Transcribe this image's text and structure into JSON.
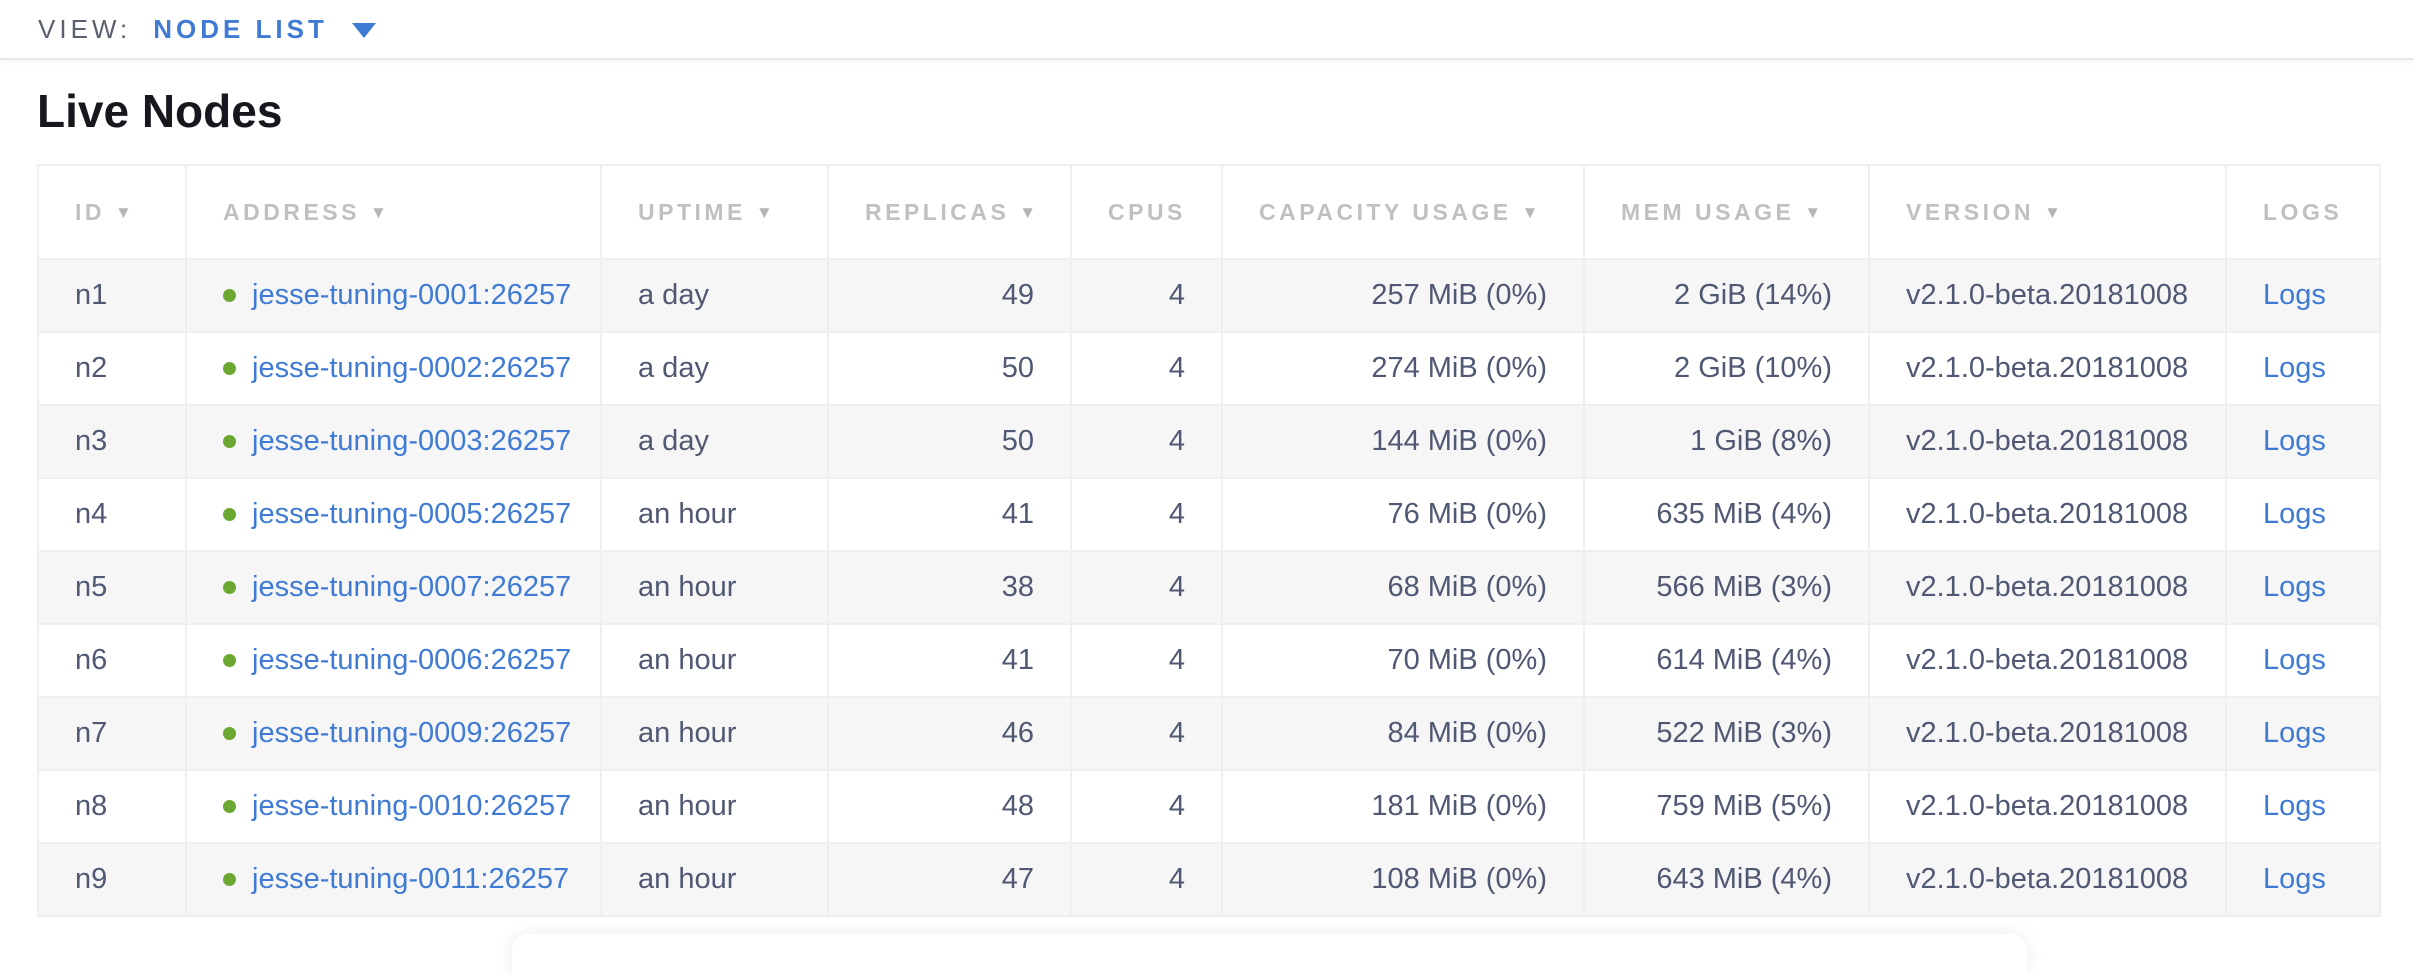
{
  "view_bar": {
    "label": "VIEW:",
    "selected": "NODE LIST"
  },
  "page": {
    "title": "Live Nodes"
  },
  "table": {
    "columns": [
      {
        "key": "id",
        "label": "ID",
        "sortable": true,
        "align": "left"
      },
      {
        "key": "address",
        "label": "Address",
        "sortable": true,
        "align": "left"
      },
      {
        "key": "uptime",
        "label": "Uptime",
        "sortable": true,
        "align": "left"
      },
      {
        "key": "replicas",
        "label": "Replicas",
        "sortable": true,
        "align": "left"
      },
      {
        "key": "cpus",
        "label": "CPUs",
        "sortable": false,
        "align": "left"
      },
      {
        "key": "capacity",
        "label": "Capacity Usage",
        "sortable": true,
        "align": "left"
      },
      {
        "key": "mem",
        "label": "Mem Usage",
        "sortable": true,
        "align": "left"
      },
      {
        "key": "version",
        "label": "Version",
        "sortable": true,
        "align": "left"
      },
      {
        "key": "logs",
        "label": "Logs",
        "sortable": false,
        "align": "left"
      }
    ],
    "rows": [
      {
        "id": "n1",
        "status": "live",
        "address": "jesse-tuning-0001:26257",
        "uptime": "a day",
        "replicas": "49",
        "cpus": "4",
        "capacity": "257 MiB (0%)",
        "mem": "2 GiB (14%)",
        "version": "v2.1.0-beta.20181008",
        "logs": "Logs"
      },
      {
        "id": "n2",
        "status": "live",
        "address": "jesse-tuning-0002:26257",
        "uptime": "a day",
        "replicas": "50",
        "cpus": "4",
        "capacity": "274 MiB (0%)",
        "mem": "2 GiB (10%)",
        "version": "v2.1.0-beta.20181008",
        "logs": "Logs"
      },
      {
        "id": "n3",
        "status": "live",
        "address": "jesse-tuning-0003:26257",
        "uptime": "a day",
        "replicas": "50",
        "cpus": "4",
        "capacity": "144 MiB (0%)",
        "mem": "1 GiB (8%)",
        "version": "v2.1.0-beta.20181008",
        "logs": "Logs"
      },
      {
        "id": "n4",
        "status": "live",
        "address": "jesse-tuning-0005:26257",
        "uptime": "an hour",
        "replicas": "41",
        "cpus": "4",
        "capacity": "76 MiB (0%)",
        "mem": "635 MiB (4%)",
        "version": "v2.1.0-beta.20181008",
        "logs": "Logs"
      },
      {
        "id": "n5",
        "status": "live",
        "address": "jesse-tuning-0007:26257",
        "uptime": "an hour",
        "replicas": "38",
        "cpus": "4",
        "capacity": "68 MiB (0%)",
        "mem": "566 MiB (3%)",
        "version": "v2.1.0-beta.20181008",
        "logs": "Logs"
      },
      {
        "id": "n6",
        "status": "live",
        "address": "jesse-tuning-0006:26257",
        "uptime": "an hour",
        "replicas": "41",
        "cpus": "4",
        "capacity": "70 MiB (0%)",
        "mem": "614 MiB (4%)",
        "version": "v2.1.0-beta.20181008",
        "logs": "Logs"
      },
      {
        "id": "n7",
        "status": "live",
        "address": "jesse-tuning-0009:26257",
        "uptime": "an hour",
        "replicas": "46",
        "cpus": "4",
        "capacity": "84 MiB (0%)",
        "mem": "522 MiB (3%)",
        "version": "v2.1.0-beta.20181008",
        "logs": "Logs"
      },
      {
        "id": "n8",
        "status": "live",
        "address": "jesse-tuning-0010:26257",
        "uptime": "an hour",
        "replicas": "48",
        "cpus": "4",
        "capacity": "181 MiB (0%)",
        "mem": "759 MiB (5%)",
        "version": "v2.1.0-beta.20181008",
        "logs": "Logs"
      },
      {
        "id": "n9",
        "status": "live",
        "address": "jesse-tuning-0011:26257",
        "uptime": "an hour",
        "replicas": "47",
        "cpus": "4",
        "capacity": "108 MiB (0%)",
        "mem": "643 MiB (4%)",
        "version": "v2.1.0-beta.20181008",
        "logs": "Logs"
      }
    ]
  },
  "colors": {
    "accent_blue": "#3f7bd4",
    "live_green": "#6aa832",
    "cell_text_slate": "#505873",
    "header_gray": "#c0c0c0",
    "row_stripe": "#f6f6f6"
  }
}
